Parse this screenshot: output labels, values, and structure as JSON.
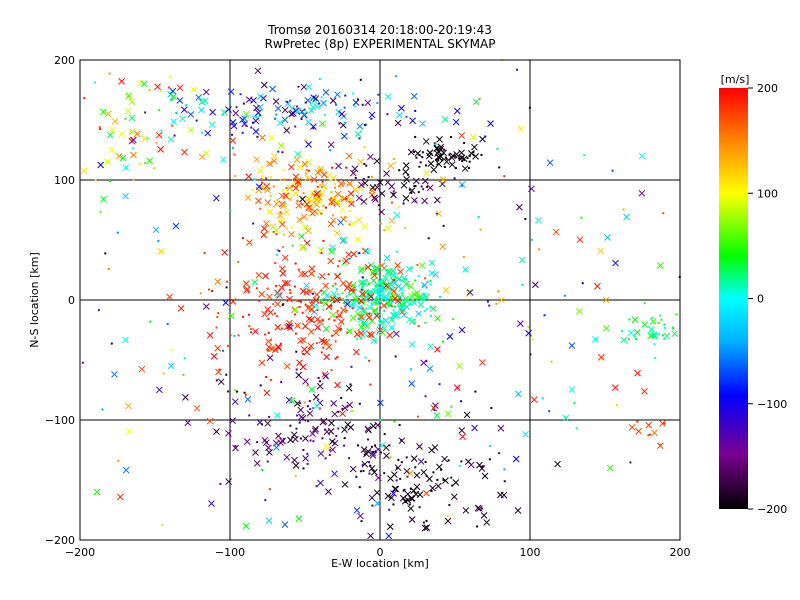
{
  "chart_data": {
    "type": "scatter",
    "title": "Tromsø 20160314 20:18:00-20:19:43",
    "subtitle": "RwPretec (8p) EXPERIMENTAL SKYMAP",
    "xlabel": "E-W location [km]",
    "ylabel": "N-S location [km]",
    "xlim": [
      -200,
      200
    ],
    "ylim": [
      -200,
      200
    ],
    "x_ticks": [
      "−200",
      "−100",
      "0",
      "100",
      "200"
    ],
    "y_ticks": [
      "−200",
      "−100",
      "0",
      "100",
      "200"
    ],
    "grid": true,
    "colorbar": {
      "label": "[m/s]",
      "min": -200,
      "max": 200,
      "ticks": [
        "200",
        "100",
        "0",
        "−100",
        "−200"
      ],
      "colormap": "rainbow (black-purple-blue-cyan-green-yellow-red)"
    },
    "markers": [
      "x",
      "dot"
    ],
    "clusters": [
      {
        "x": 0,
        "y": 0,
        "sx": 18,
        "sy": 16,
        "vmin": -20,
        "vmax": 60,
        "n": 260
      },
      {
        "x": -45,
        "y": 90,
        "sx": 22,
        "sy": 18,
        "vmin": 90,
        "vmax": 200,
        "n": 190
      },
      {
        "x": -60,
        "y": 155,
        "sx": 45,
        "sy": 12,
        "vmin": -180,
        "vmax": 20,
        "n": 150
      },
      {
        "x": -50,
        "y": -10,
        "sx": 32,
        "sy": 28,
        "vmin": 170,
        "vmax": 200,
        "n": 230
      },
      {
        "x": -45,
        "y": -110,
        "sx": 35,
        "sy": 28,
        "vmin": -200,
        "vmax": -110,
        "n": 140
      },
      {
        "x": 25,
        "y": -150,
        "sx": 25,
        "sy": 22,
        "vmin": -200,
        "vmax": -180,
        "n": 110
      },
      {
        "x": 45,
        "y": 120,
        "sx": 12,
        "sy": 7,
        "vmin": -200,
        "vmax": -190,
        "n": 70
      },
      {
        "x": 15,
        "y": 95,
        "sx": 15,
        "sy": 10,
        "vmin": -200,
        "vmax": -150,
        "n": 50
      },
      {
        "x": -160,
        "y": 140,
        "sx": 28,
        "sy": 30,
        "vmin": -10,
        "vmax": 200,
        "n": 70
      },
      {
        "x": 185,
        "y": -25,
        "sx": 12,
        "sy": 8,
        "vmin": 0,
        "vmax": 60,
        "n": 40
      },
      {
        "x": 180,
        "y": -100,
        "sx": 12,
        "sy": 18,
        "vmin": 170,
        "vmax": 200,
        "n": 15
      },
      {
        "x": 0,
        "y": 0,
        "sx": 120,
        "sy": 110,
        "vmin": -200,
        "vmax": 200,
        "n": 330
      }
    ]
  }
}
